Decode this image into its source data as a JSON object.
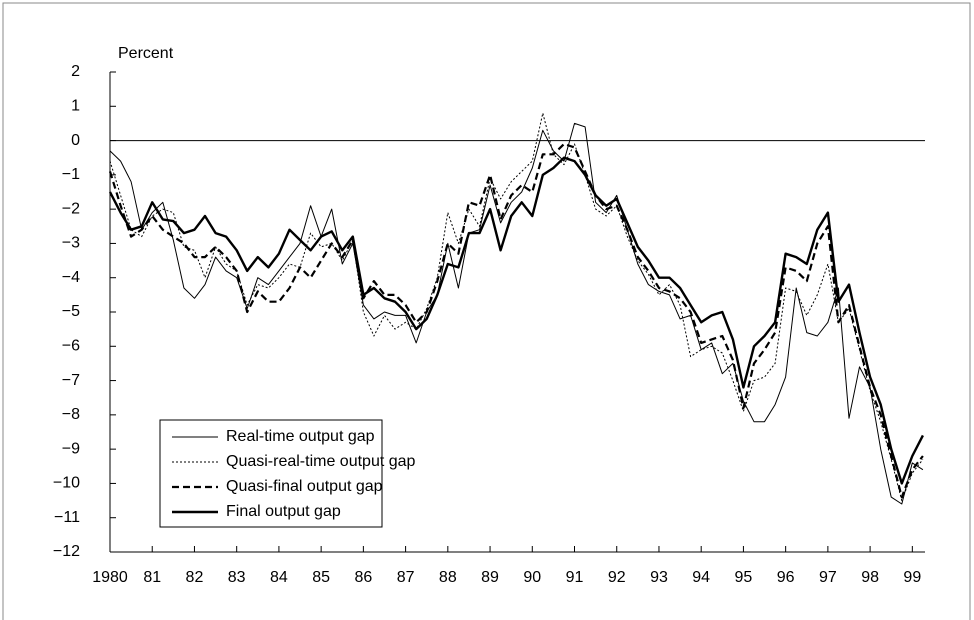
{
  "chart_data": {
    "type": "line",
    "y_label": "Percent",
    "x": [
      1980,
      1980.25,
      1980.5,
      1980.75,
      1981,
      1981.25,
      1981.5,
      1981.75,
      1982,
      1982.25,
      1982.5,
      1982.75,
      1983,
      1983.25,
      1983.5,
      1983.75,
      1984,
      1984.25,
      1984.5,
      1984.75,
      1985,
      1985.25,
      1985.5,
      1985.75,
      1986,
      1986.25,
      1986.5,
      1986.75,
      1987,
      1987.25,
      1987.5,
      1987.75,
      1988,
      1988.25,
      1988.5,
      1988.75,
      1989,
      1989.25,
      1989.5,
      1989.75,
      1990,
      1990.25,
      1990.5,
      1990.75,
      1991,
      1991.25,
      1991.5,
      1991.75,
      1992,
      1992.25,
      1992.5,
      1992.75,
      1993,
      1993.25,
      1993.5,
      1993.75,
      1994,
      1994.25,
      1994.5,
      1994.75,
      1995,
      1995.25,
      1995.5,
      1995.75,
      1996,
      1996.25,
      1996.5,
      1996.75,
      1997,
      1997.25,
      1997.5,
      1997.75,
      1998,
      1998.25,
      1998.5,
      1998.75,
      1999,
      1999.25
    ],
    "series": [
      {
        "name": "Real-time output gap",
        "color": "#000000",
        "line_style": "solid",
        "line_width": 1,
        "values": [
          -0.3,
          -0.6,
          -1.2,
          -2.6,
          -2.1,
          -1.8,
          -2.9,
          -4.3,
          -4.6,
          -4.2,
          -3.4,
          -3.8,
          -4.0,
          -4.9,
          -4.0,
          -4.2,
          -3.8,
          -3.4,
          -3.0,
          -1.9,
          -2.8,
          -2.0,
          -3.6,
          -3.0,
          -4.8,
          -5.2,
          -5.0,
          -5.1,
          -5.1,
          -5.9,
          -5.0,
          -4.5,
          -3.0,
          -4.3,
          -2.7,
          -2.6,
          -1.3,
          -2.4,
          -1.8,
          -1.5,
          -0.8,
          0.3,
          -0.3,
          -0.6,
          0.5,
          0.4,
          -1.8,
          -2.1,
          -1.6,
          -2.6,
          -3.6,
          -4.2,
          -4.4,
          -4.5,
          -5.2,
          -5.1,
          -6.1,
          -5.9,
          -6.8,
          -6.5,
          -7.6,
          -8.2,
          -8.2,
          -7.7,
          -6.9,
          -4.3,
          -5.6,
          -5.7,
          -5.3,
          -4.3,
          -8.1,
          -6.6,
          -7.2,
          -9.0,
          -10.4,
          -10.6,
          -9.4,
          -9.6
        ]
      },
      {
        "name": "Quasi-real-time output gap",
        "color": "#000000",
        "line_style": "dotted",
        "line_width": 1,
        "values": [
          -0.6,
          -1.6,
          -2.6,
          -2.8,
          -2.2,
          -2.0,
          -2.1,
          -3.1,
          -3.2,
          -4.0,
          -3.1,
          -3.6,
          -3.8,
          -4.8,
          -4.2,
          -4.3,
          -4.0,
          -3.6,
          -3.7,
          -2.7,
          -3.1,
          -3.0,
          -3.5,
          -2.9,
          -5.0,
          -5.7,
          -5.1,
          -5.5,
          -5.3,
          -5.5,
          -4.9,
          -4.0,
          -2.1,
          -3.0,
          -2.0,
          -2.5,
          -1.1,
          -1.7,
          -1.2,
          -0.9,
          -0.6,
          0.8,
          -0.4,
          -0.7,
          -0.1,
          -1.0,
          -2.0,
          -2.2,
          -1.9,
          -2.8,
          -3.5,
          -3.9,
          -4.5,
          -4.2,
          -4.8,
          -6.3,
          -6.1,
          -6.0,
          -6.2,
          -7.0,
          -7.9,
          -7.0,
          -6.9,
          -6.5,
          -4.3,
          -4.4,
          -5.1,
          -4.5,
          -3.6,
          -5.3,
          -4.9,
          -6.1,
          -7.3,
          -8.2,
          -9.3,
          -10.5,
          -9.7,
          -9.3
        ]
      },
      {
        "name": "Quasi-final output gap",
        "color": "#000000",
        "line_style": "dashed",
        "line_width": 2.2,
        "values": [
          -0.9,
          -1.9,
          -2.8,
          -2.6,
          -2.2,
          -2.6,
          -2.8,
          -3.0,
          -3.4,
          -3.4,
          -3.1,
          -3.4,
          -3.8,
          -5.0,
          -4.4,
          -4.7,
          -4.7,
          -4.3,
          -3.7,
          -4.0,
          -3.5,
          -3.0,
          -3.4,
          -2.9,
          -4.6,
          -4.1,
          -4.5,
          -4.5,
          -4.8,
          -5.3,
          -5.0,
          -4.1,
          -3.0,
          -3.3,
          -1.8,
          -1.9,
          -1.0,
          -2.3,
          -1.6,
          -1.3,
          -1.5,
          -0.4,
          -0.4,
          -0.1,
          -0.2,
          -0.9,
          -1.6,
          -2.0,
          -1.9,
          -2.6,
          -3.4,
          -3.8,
          -4.3,
          -4.4,
          -4.6,
          -5.0,
          -5.9,
          -5.8,
          -5.7,
          -6.4,
          -7.8,
          -6.5,
          -6.1,
          -5.6,
          -3.7,
          -3.8,
          -4.1,
          -3.0,
          -2.5,
          -5.3,
          -4.8,
          -6.0,
          -7.2,
          -8.0,
          -9.2,
          -10.4,
          -9.6,
          -9.2
        ]
      },
      {
        "name": "Final output gap",
        "color": "#000000",
        "line_style": "solid",
        "line_width": 2.4,
        "values": [
          -1.5,
          -2.1,
          -2.6,
          -2.5,
          -1.8,
          -2.3,
          -2.35,
          -2.7,
          -2.6,
          -2.2,
          -2.7,
          -2.8,
          -3.2,
          -3.8,
          -3.4,
          -3.7,
          -3.3,
          -2.6,
          -2.9,
          -3.2,
          -2.8,
          -2.65,
          -3.2,
          -2.8,
          -4.5,
          -4.3,
          -4.6,
          -4.7,
          -5.0,
          -5.5,
          -5.2,
          -4.5,
          -3.6,
          -3.7,
          -2.7,
          -2.7,
          -2.0,
          -3.2,
          -2.2,
          -1.8,
          -2.2,
          -1.0,
          -0.8,
          -0.5,
          -0.6,
          -1.0,
          -1.6,
          -1.9,
          -1.7,
          -2.4,
          -3.1,
          -3.5,
          -4.0,
          -4.0,
          -4.3,
          -4.8,
          -5.3,
          -5.1,
          -5.0,
          -5.8,
          -7.2,
          -6.0,
          -5.7,
          -5.3,
          -3.3,
          -3.4,
          -3.6,
          -2.6,
          -2.1,
          -4.7,
          -4.2,
          -5.6,
          -6.9,
          -7.7,
          -9.0,
          -10.0,
          -9.2,
          -8.6
        ]
      }
    ],
    "xlim": [
      1980,
      1999.3
    ],
    "xticks": [
      {
        "value": 1980,
        "label": "1980"
      },
      {
        "value": 1981,
        "label": "81"
      },
      {
        "value": 1982,
        "label": "82"
      },
      {
        "value": 1983,
        "label": "83"
      },
      {
        "value": 1984,
        "label": "84"
      },
      {
        "value": 1985,
        "label": "85"
      },
      {
        "value": 1986,
        "label": "86"
      },
      {
        "value": 1987,
        "label": "87"
      },
      {
        "value": 1988,
        "label": "88"
      },
      {
        "value": 1989,
        "label": "89"
      },
      {
        "value": 1990,
        "label": "90"
      },
      {
        "value": 1991,
        "label": "91"
      },
      {
        "value": 1992,
        "label": "92"
      },
      {
        "value": 1993,
        "label": "93"
      },
      {
        "value": 1994,
        "label": "94"
      },
      {
        "value": 1995,
        "label": "95"
      },
      {
        "value": 1996,
        "label": "96"
      },
      {
        "value": 1997,
        "label": "97"
      },
      {
        "value": 1998,
        "label": "98"
      },
      {
        "value": 1999,
        "label": "99"
      }
    ],
    "ylim": [
      -12,
      2
    ],
    "yticks": [
      2,
      1,
      0,
      {
        "value": -1,
        "label": "−1"
      },
      {
        "value": -2,
        "label": "−2"
      },
      {
        "value": -3,
        "label": "−3"
      },
      {
        "value": -4,
        "label": "−4"
      },
      {
        "value": -5,
        "label": "−5"
      },
      {
        "value": -6,
        "label": "−6"
      },
      {
        "value": -7,
        "label": "−7"
      },
      {
        "value": -8,
        "label": "−8"
      },
      {
        "value": -9,
        "label": "−9"
      },
      {
        "value": -10,
        "label": "−10"
      },
      {
        "value": -11,
        "label": "−11"
      },
      {
        "value": -12,
        "label": "−12"
      }
    ],
    "zero_line": true,
    "legend": "lower left"
  }
}
